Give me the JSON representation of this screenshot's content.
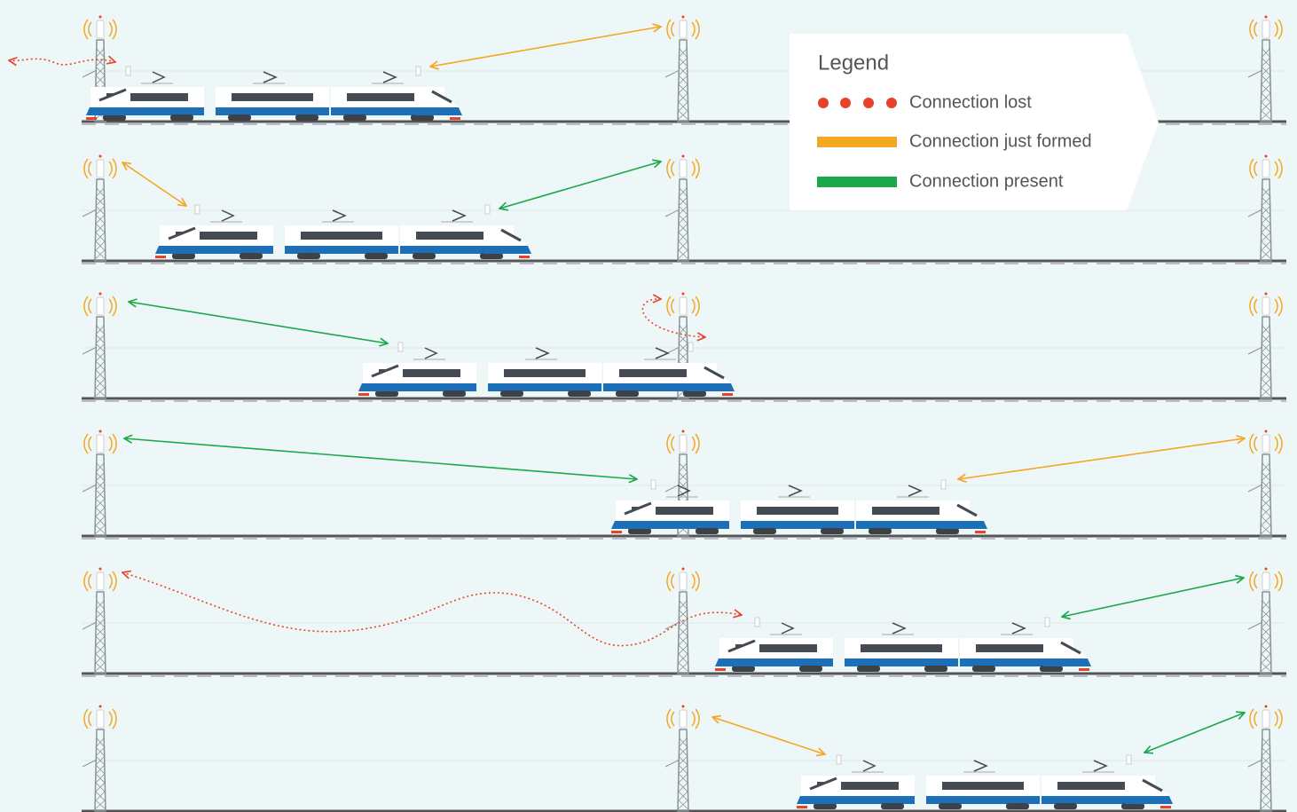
{
  "legend": {
    "title": "Legend",
    "items": [
      {
        "label": "Connection lost"
      },
      {
        "label": "Connection just formed"
      },
      {
        "label": "Connection present"
      }
    ]
  }
}
